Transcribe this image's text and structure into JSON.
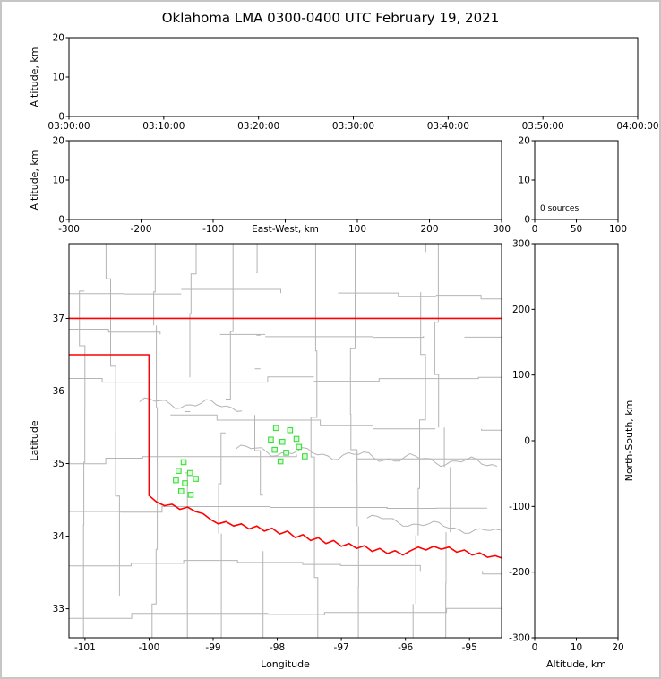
{
  "title": "Oklahoma LMA 0300-0400 UTC February 19, 2021",
  "colors": {
    "axis": "#000000",
    "state_border": "#ff0000",
    "county_lines": "#b4b4b4",
    "river_lines": "#b4b4b4",
    "station_fill": "#dcffdc",
    "station_stroke": "#3cdc3c",
    "background": "#ffffff",
    "frame_border": "#c6c6c6"
  },
  "chart_data": [
    {
      "id": "alt_time",
      "type": "scatter",
      "title": "",
      "xlabel": "",
      "ylabel": "Altitude, km",
      "xtick_labels": [
        "03:00:00",
        "03:10:00",
        "03:20:00",
        "03:30:00",
        "03:40:00",
        "03:50:00",
        "04:00:00"
      ],
      "ylim": [
        0,
        20
      ],
      "yticks": [
        0,
        10,
        20
      ],
      "points": []
    },
    {
      "id": "alt_ew",
      "type": "scatter",
      "xlabel": "East-West, km",
      "ylabel": "Altitude, km",
      "xlim": [
        -300,
        300
      ],
      "xticks": [
        -300,
        -200,
        -100,
        0,
        100,
        200,
        300
      ],
      "ylim": [
        0,
        20
      ],
      "yticks": [
        0,
        10,
        20
      ],
      "points": []
    },
    {
      "id": "alt_hist",
      "type": "line",
      "annotation": "0 sources",
      "xlim": [
        0,
        100
      ],
      "xticks": [
        0,
        50,
        100
      ],
      "ylim": [
        0,
        20
      ],
      "yticks": [
        0,
        10,
        20
      ],
      "points": []
    },
    {
      "id": "map",
      "type": "scatter",
      "xlabel": "Longitude",
      "ylabel": "Latitude",
      "xlim": [
        -101.25,
        -94.5
      ],
      "xticks": [
        -101,
        -100,
        -99,
        -98,
        -97,
        -96,
        -95
      ],
      "ylim": [
        32.6,
        38.03
      ],
      "yticks": [
        33,
        34,
        35,
        36,
        37
      ],
      "stations": [
        [
          -99.46,
          35.02
        ],
        [
          -99.54,
          34.9
        ],
        [
          -99.36,
          34.87
        ],
        [
          -99.58,
          34.77
        ],
        [
          -99.44,
          34.73
        ],
        [
          -99.27,
          34.79
        ],
        [
          -99.5,
          34.62
        ],
        [
          -99.35,
          34.57
        ],
        [
          -98.02,
          35.49
        ],
        [
          -97.8,
          35.46
        ],
        [
          -98.1,
          35.33
        ],
        [
          -97.92,
          35.3
        ],
        [
          -97.7,
          35.34
        ],
        [
          -98.04,
          35.19
        ],
        [
          -97.86,
          35.15
        ],
        [
          -97.66,
          35.23
        ],
        [
          -97.95,
          35.03
        ],
        [
          -97.57,
          35.1
        ]
      ],
      "state_border": {
        "north_lat": 37.0,
        "panhandle_south": [
          [
            -101.25,
            36.5
          ],
          [
            -100.0,
            36.5
          ]
        ],
        "west": [
          [
            -100.0,
            36.5
          ],
          [
            -100.0,
            34.56
          ]
        ],
        "red_river": [
          [
            -100.0,
            34.56
          ],
          [
            -99.88,
            34.47
          ],
          [
            -99.76,
            34.42
          ],
          [
            -99.64,
            34.44
          ],
          [
            -99.52,
            34.37
          ],
          [
            -99.4,
            34.4
          ],
          [
            -99.28,
            34.34
          ],
          [
            -99.16,
            34.31
          ],
          [
            -99.04,
            34.23
          ],
          [
            -98.92,
            34.17
          ],
          [
            -98.8,
            34.2
          ],
          [
            -98.68,
            34.14
          ],
          [
            -98.56,
            34.17
          ],
          [
            -98.44,
            34.1
          ],
          [
            -98.32,
            34.14
          ],
          [
            -98.2,
            34.07
          ],
          [
            -98.08,
            34.11
          ],
          [
            -97.96,
            34.03
          ],
          [
            -97.84,
            34.07
          ],
          [
            -97.72,
            33.98
          ],
          [
            -97.6,
            34.02
          ],
          [
            -97.48,
            33.94
          ],
          [
            -97.36,
            33.98
          ],
          [
            -97.24,
            33.9
          ],
          [
            -97.12,
            33.94
          ],
          [
            -97.0,
            33.86
          ],
          [
            -96.88,
            33.9
          ],
          [
            -96.76,
            33.83
          ],
          [
            -96.64,
            33.87
          ],
          [
            -96.52,
            33.79
          ],
          [
            -96.4,
            33.83
          ],
          [
            -96.28,
            33.76
          ],
          [
            -96.16,
            33.8
          ],
          [
            -96.04,
            33.74
          ],
          [
            -95.92,
            33.8
          ],
          [
            -95.8,
            33.85
          ],
          [
            -95.68,
            33.81
          ],
          [
            -95.56,
            33.86
          ],
          [
            -95.44,
            33.82
          ],
          [
            -95.32,
            33.85
          ],
          [
            -95.2,
            33.78
          ],
          [
            -95.08,
            33.81
          ],
          [
            -94.96,
            33.74
          ],
          [
            -94.84,
            33.77
          ],
          [
            -94.72,
            33.71
          ],
          [
            -94.6,
            33.73
          ],
          [
            -94.5,
            33.7
          ]
        ]
      }
    },
    {
      "id": "alt_ns",
      "type": "scatter",
      "xlabel": "Altitude, km",
      "ylabel": "North-South, km",
      "xlim": [
        0,
        20
      ],
      "xticks": [
        0,
        10,
        20
      ],
      "ylim": [
        -300,
        300
      ],
      "yticks": [
        -300,
        -200,
        -100,
        0,
        100,
        200,
        300
      ],
      "points": []
    }
  ]
}
